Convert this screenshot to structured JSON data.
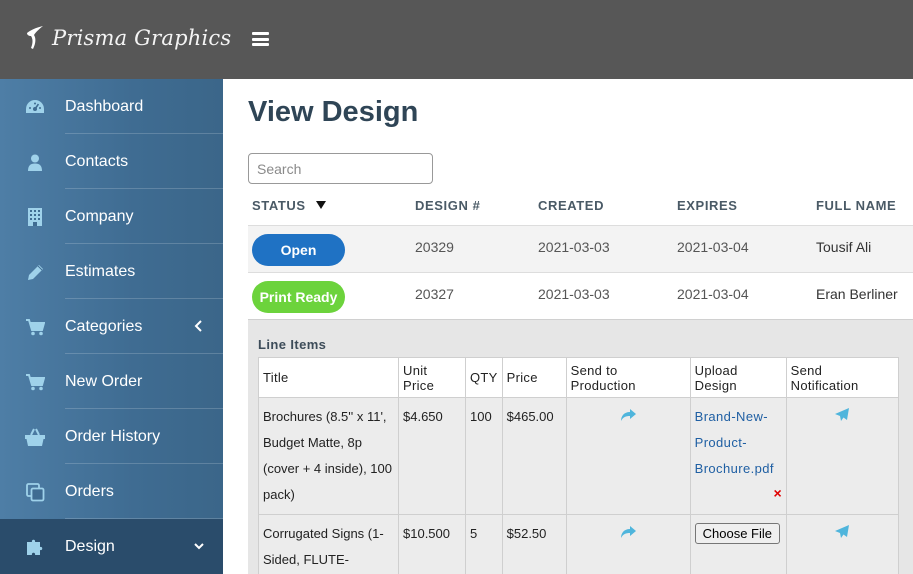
{
  "header": {
    "brand": "Prisma Graphics",
    "menu_icon": "hamburger-icon"
  },
  "sidebar": {
    "items": [
      {
        "label": "Dashboard",
        "icon": "dashboard-gauge-icon"
      },
      {
        "label": "Contacts",
        "icon": "user-icon"
      },
      {
        "label": "Company",
        "icon": "building-icon"
      },
      {
        "label": "Estimates",
        "icon": "pencil-icon"
      },
      {
        "label": "Categories",
        "icon": "cart-icon",
        "chevron": "chevron-left-icon"
      },
      {
        "label": "New Order",
        "icon": "cart-icon"
      },
      {
        "label": "Order History",
        "icon": "basket-icon"
      },
      {
        "label": "Orders",
        "icon": "copy-icon"
      },
      {
        "label": "Design",
        "icon": "puzzle-icon",
        "chevron": "chevron-down-icon",
        "active": true
      }
    ]
  },
  "main": {
    "title": "View Design",
    "search": {
      "placeholder": "Search",
      "value": ""
    },
    "table": {
      "headers": {
        "status": "STATUS",
        "design_no": "DESIGN #",
        "created": "CREATED",
        "expires": "EXPIRES",
        "full_name": "FULL NAME"
      },
      "rows": [
        {
          "status": "Open",
          "status_color": "#1f72c4",
          "design_no": "20329",
          "created": "2021-03-03",
          "expires": "2021-03-04",
          "full_name": "Tousif Ali"
        },
        {
          "status": "Print Ready",
          "status_color": "#6cd33c",
          "design_no": "20327",
          "created": "2021-03-03",
          "expires": "2021-03-04",
          "full_name": "Eran Berliner"
        }
      ]
    },
    "line_items": {
      "title": "Line Items",
      "headers": {
        "title": "Title",
        "unit_price": "Unit Price",
        "qty": "QTY",
        "price": "Price",
        "send_to_production": "Send to Production",
        "upload_design": "Upload Design",
        "send_notification": "Send Notification"
      },
      "rows": [
        {
          "title": "Brochures (8.5'' x 11', Budget Matte, 8p (cover + 4 inside), 100 pack)",
          "unit_price": "$4.650",
          "qty": "100",
          "price": "$465.00",
          "upload_file": "Brand-New-Product-Brochure.pdf",
          "remove": "×"
        },
        {
          "title": "Corrugated Signs (1-Sided, FLUTE-",
          "unit_price": "$10.500",
          "qty": "5",
          "price": "$52.50",
          "upload_button": "Choose File"
        }
      ]
    }
  }
}
